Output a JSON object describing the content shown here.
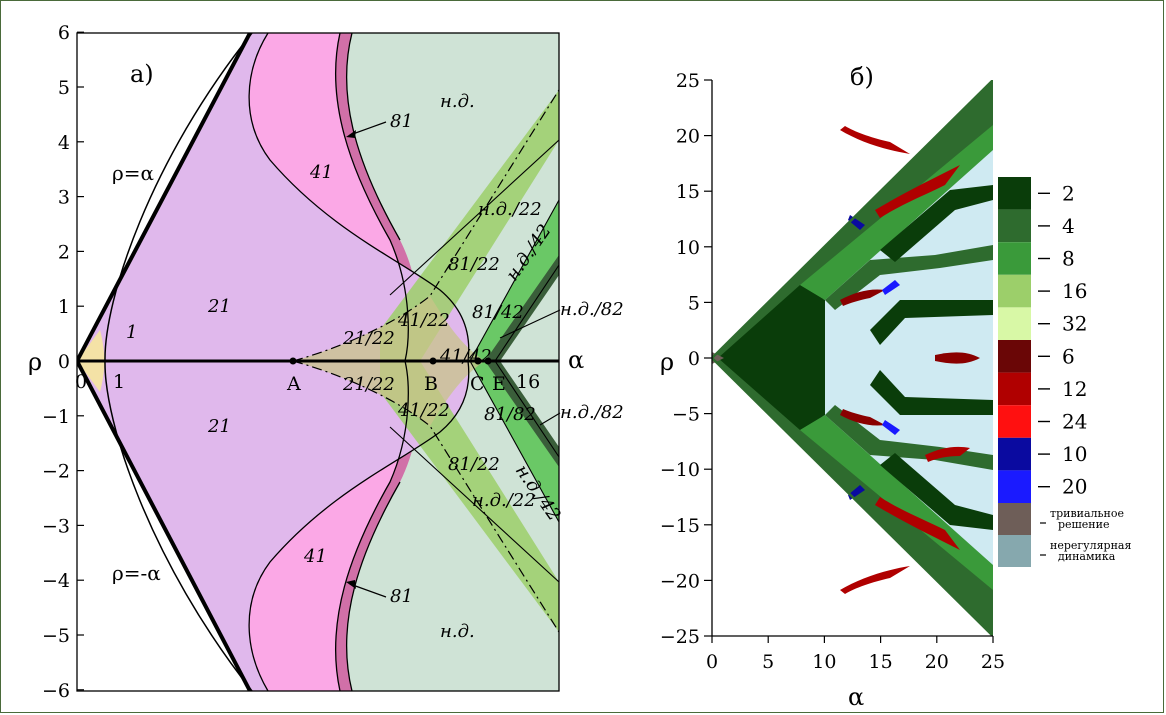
{
  "colors": {
    "frame": "#4a6a3a",
    "trivial_tan": "#f4e2a6",
    "period2_lilac": "#e0b8ec",
    "period4_pink": "#fba8e6",
    "period8_mauve": "#d170a8",
    "chaos_mint": "#cfe3d6",
    "green_2": "#0a3d0a",
    "green_4": "#2e6b2e",
    "green_8": "#3a9a3a",
    "green_16": "#9ccf6a",
    "green_32": "#d8f8a6",
    "red_6": "#6a0606",
    "red_12": "#b00000",
    "red_24": "#ff1010",
    "blue_10": "#0a0aa0",
    "blue_20": "#1a1aff",
    "trivial_gray": "#6e5e58",
    "irregular_gray": "#86a8ae",
    "pale_blue": "#cfeaf2"
  },
  "panel_a": {
    "label": "а)",
    "axis": {
      "x_label": "α",
      "y_label": "ρ"
    },
    "y_ticks": [
      "6",
      "5",
      "4",
      "3",
      "2",
      "1",
      "0",
      "−1",
      "−2",
      "−3",
      "−4",
      "−5",
      "−6"
    ],
    "x_tick_labels": [
      "0",
      "1",
      "16"
    ],
    "points": [
      "A",
      "B",
      "C",
      "E"
    ],
    "line_labels": [
      "ρ=α",
      "ρ=-α"
    ],
    "region_labels": {
      "trivial": "1",
      "p2_upper": "21",
      "p2_lower": "21",
      "p4_upper": "41",
      "p4_lower": "41",
      "p8_upper": "81",
      "p8_lower": "81",
      "chaos_upper": "н.д.",
      "chaos_lower": "н.д.",
      "chaos_over_2_upper": "н.д./22",
      "chaos_over_2_lower": "н.д./22",
      "chaos_over_4_upper": "н.д./42",
      "chaos_over_4_lower": "н.д./42",
      "chaos_over_8_upper": "н.д./82",
      "chaos_over_8_lower": "н.д./82",
      "r21_22_upper": "21/22",
      "r21_22_lower": "21/22",
      "r41_22_upper": "41/22",
      "r41_22_lower": "41/22",
      "r81_22_upper": "81/22",
      "r81_22_lower": "81/22",
      "r41_42": "41/42",
      "r81_42": "81/42",
      "r81_82": "81/82"
    }
  },
  "panel_b": {
    "label": "б)",
    "axis": {
      "x_label": "α",
      "y_label": "ρ"
    },
    "y_ticks": [
      "25",
      "20",
      "15",
      "10",
      "5",
      "0",
      "−5",
      "−10",
      "−15",
      "−20",
      "−25"
    ],
    "x_ticks": [
      "0",
      "5",
      "10",
      "15",
      "20",
      "25"
    ],
    "legend": [
      {
        "label": "2",
        "color": "#0a3d0a"
      },
      {
        "label": "4",
        "color": "#2e6b2e"
      },
      {
        "label": "8",
        "color": "#3a9a3a"
      },
      {
        "label": "16",
        "color": "#9ccf6a"
      },
      {
        "label": "32",
        "color": "#d8f8a6"
      },
      {
        "label": "6",
        "color": "#6a0606"
      },
      {
        "label": "12",
        "color": "#b00000"
      },
      {
        "label": "24",
        "color": "#ff1010"
      },
      {
        "label": "10",
        "color": "#0a0aa0"
      },
      {
        "label": "20",
        "color": "#1a1aff"
      },
      {
        "label": "тривиальное решение",
        "line1": "тривиальное",
        "line2": "решение",
        "color": "#6e5e58"
      },
      {
        "label": "нерегулярная динамика",
        "line1": "нерегулярная",
        "line2": "динамика",
        "color": "#86a8ae"
      }
    ]
  }
}
